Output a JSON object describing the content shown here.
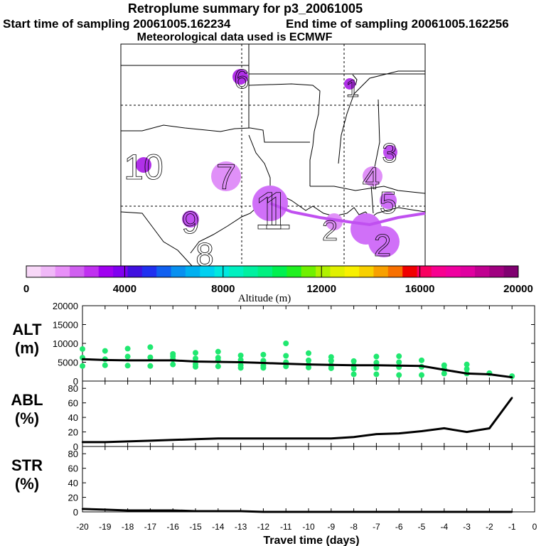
{
  "header": {
    "title": "Retroplume summary for p3_20061005",
    "start_label": "Start time of sampling 20061005.162234",
    "end_label": "End time of sampling 20061005.162256",
    "met_label": "Meteorological data used is ECMWF"
  },
  "map": {
    "day_labels": [
      "1",
      "2",
      "3",
      "4",
      "5",
      "6",
      "7",
      "8",
      "9",
      "10"
    ],
    "plume_color": "#c050f0"
  },
  "colorbar": {
    "label": "Altitude (m)",
    "ticks": [
      "0",
      "4000",
      "8000",
      "12000",
      "16000",
      "20000"
    ],
    "colors": [
      "#f8d8f8",
      "#f0b8f8",
      "#e890f8",
      "#d060f0",
      "#c030f0",
      "#a000f0",
      "#8000f0",
      "#4010e0",
      "#2030f0",
      "#1060f0",
      "#0890f0",
      "#00b0f0",
      "#00d0f0",
      "#00e8e0",
      "#00f0c0",
      "#00f0a0",
      "#00f080",
      "#00f050",
      "#20f020",
      "#70f000",
      "#b0f000",
      "#e0f000",
      "#f8f000",
      "#f8d000",
      "#f8a000",
      "#f87000",
      "#f00000",
      "#f80060",
      "#f80090",
      "#f000a0",
      "#e000a0",
      "#c00090",
      "#a00080",
      "#800070"
    ]
  },
  "chart_data": [
    {
      "type": "line",
      "name": "ALT",
      "ylabel": "ALT\n(m)",
      "ylim": [
        0,
        20000
      ],
      "yticks": [
        "0",
        "5000",
        "10000",
        "15000",
        "20000"
      ],
      "line_color": "#000000",
      "dot_color": "#20e870",
      "x": [
        -20,
        -19,
        -18,
        -17,
        -16,
        -15,
        -14,
        -13,
        -12,
        -11,
        -10,
        -9,
        -8,
        -7,
        -6,
        -5,
        -4,
        -3,
        -2,
        -1
      ],
      "values": [
        5800,
        5600,
        5500,
        5500,
        5500,
        5200,
        5100,
        5000,
        4800,
        4600,
        4400,
        4300,
        4200,
        4200,
        4100,
        4000,
        3000,
        2000,
        1800,
        1000
      ],
      "scatter": [
        [
          -20,
          8500
        ],
        [
          -20,
          6200
        ],
        [
          -20,
          4000
        ],
        [
          -19,
          8000
        ],
        [
          -19,
          5800
        ],
        [
          -19,
          4200
        ],
        [
          -18,
          8600
        ],
        [
          -18,
          6500
        ],
        [
          -18,
          4100
        ],
        [
          -17,
          9000
        ],
        [
          -17,
          6300
        ],
        [
          -17,
          4000
        ],
        [
          -16,
          7200
        ],
        [
          -16,
          6600
        ],
        [
          -16,
          5800
        ],
        [
          -16,
          4400
        ],
        [
          -15,
          7500
        ],
        [
          -15,
          6000
        ],
        [
          -15,
          4500
        ],
        [
          -15,
          3800
        ],
        [
          -14,
          7800
        ],
        [
          -14,
          6200
        ],
        [
          -14,
          5400
        ],
        [
          -14,
          3900
        ],
        [
          -13,
          6800
        ],
        [
          -13,
          5600
        ],
        [
          -13,
          4200
        ],
        [
          -13,
          3500
        ],
        [
          -12,
          7000
        ],
        [
          -12,
          5400
        ],
        [
          -12,
          4100
        ],
        [
          -12,
          3500
        ],
        [
          -11,
          10000
        ],
        [
          -11,
          6700
        ],
        [
          -11,
          5000
        ],
        [
          -11,
          3900
        ],
        [
          -10,
          7400
        ],
        [
          -10,
          5500
        ],
        [
          -10,
          4400
        ],
        [
          -10,
          3600
        ],
        [
          -9,
          6400
        ],
        [
          -9,
          5400
        ],
        [
          -9,
          4200
        ],
        [
          -9,
          3400
        ],
        [
          -8,
          5300
        ],
        [
          -8,
          4100
        ],
        [
          -8,
          3300
        ],
        [
          -8,
          1800
        ],
        [
          -7,
          6500
        ],
        [
          -7,
          4900
        ],
        [
          -7,
          3500
        ],
        [
          -7,
          1800
        ],
        [
          -6,
          6600
        ],
        [
          -6,
          5000
        ],
        [
          -6,
          3700
        ],
        [
          -6,
          1600
        ],
        [
          -5,
          5500
        ],
        [
          -5,
          3800
        ],
        [
          -5,
          1600
        ],
        [
          -4,
          4200
        ],
        [
          -4,
          3200
        ],
        [
          -4,
          2000
        ],
        [
          -3,
          4400
        ],
        [
          -3,
          3200
        ],
        [
          -3,
          2000
        ],
        [
          -2,
          2100
        ],
        [
          -1,
          1300
        ]
      ]
    },
    {
      "type": "line",
      "name": "ABL",
      "ylabel": "ABL\n(%)",
      "ylim": [
        0,
        90
      ],
      "yticks": [
        "0",
        "20",
        "40",
        "60",
        "80"
      ],
      "line_color": "#000000",
      "x": [
        -20,
        -19,
        -18,
        -17,
        -16,
        -15,
        -14,
        -13,
        -12,
        -11,
        -10,
        -9,
        -8,
        -7,
        -6,
        -5,
        -4,
        -3,
        -2,
        -1
      ],
      "values": [
        6,
        6,
        7,
        8,
        9,
        10,
        11,
        11,
        11,
        11,
        11,
        11,
        13,
        17,
        18,
        21,
        25,
        20,
        25,
        67
      ]
    },
    {
      "type": "line",
      "name": "STR",
      "ylabel": "STR\n(%)",
      "ylim": [
        0,
        90
      ],
      "yticks": [
        "0",
        "20",
        "40",
        "60",
        "80"
      ],
      "line_color": "#000000",
      "x": [
        -20,
        -19,
        -18,
        -17,
        -16,
        -15,
        -14,
        -13,
        -12,
        -11,
        -10,
        -9,
        -8,
        -7,
        -6,
        -5,
        -4,
        -3,
        -2,
        -1
      ],
      "values": [
        4,
        3,
        2,
        2,
        2,
        1,
        1,
        1,
        0,
        0,
        0,
        0,
        0,
        0,
        0,
        0,
        0,
        0,
        0,
        0
      ]
    }
  ],
  "xaxis": {
    "label": "Travel time (days)",
    "ticks": [
      "-20",
      "-19",
      "-18",
      "-17",
      "-16",
      "-15",
      "-14",
      "-13",
      "-12",
      "-11",
      "-10",
      "-9",
      "-8",
      "-7",
      "-6",
      "-5",
      "-4",
      "-3",
      "-2",
      "-1",
      "0"
    ]
  }
}
